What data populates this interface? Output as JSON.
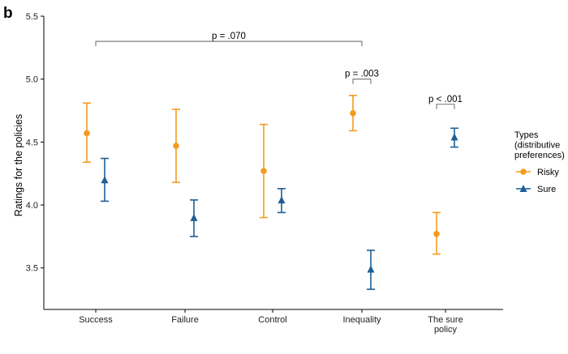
{
  "panel_label": "b",
  "chart_data": {
    "type": "scatter",
    "subtype": "point-with-error-bars",
    "categories": [
      "Success",
      "Failure",
      "Control",
      "Inequality",
      "The sure policy"
    ],
    "category_tick_lines": [
      [
        "Success"
      ],
      [
        "Failure"
      ],
      [
        "Control"
      ],
      [
        "Inequality"
      ],
      [
        "The sure",
        "policy"
      ]
    ],
    "ylabel": "Ratings for the policies",
    "xlabel": "",
    "ylim": [
      3.17,
      5.5
    ],
    "yticks": [
      3.5,
      4.0,
      4.5,
      5.0,
      5.5
    ],
    "ytick_labels": [
      "3.5",
      "4.0",
      "4.5",
      "5.0",
      "5.5"
    ],
    "grid": false,
    "legend": {
      "title_lines": [
        "Types",
        "(distributive",
        "preferences)"
      ],
      "placement": "right"
    },
    "series": [
      {
        "name": "Risky",
        "color": "#F39B1F",
        "marker": "circle",
        "values": [
          4.57,
          4.47,
          4.27,
          4.73,
          3.77
        ],
        "lower": [
          4.34,
          4.18,
          3.9,
          4.59,
          3.61
        ],
        "upper": [
          4.81,
          4.76,
          4.64,
          4.87,
          3.94
        ]
      },
      {
        "name": "Sure",
        "color": "#1D5F96",
        "marker": "triangle",
        "values": [
          4.2,
          3.9,
          4.04,
          3.49,
          4.54
        ],
        "lower": [
          4.03,
          3.75,
          3.94,
          3.33,
          4.46
        ],
        "upper": [
          4.37,
          4.04,
          4.13,
          3.64,
          4.61
        ]
      }
    ],
    "annotations": [
      {
        "text": "p = .070",
        "from": "Success",
        "to": "Inequality",
        "y": 5.3
      },
      {
        "text": "p = .003",
        "within": "Inequality",
        "y": 5.0
      },
      {
        "text": "p < .001",
        "within": "The sure policy",
        "y": 4.8
      }
    ]
  }
}
